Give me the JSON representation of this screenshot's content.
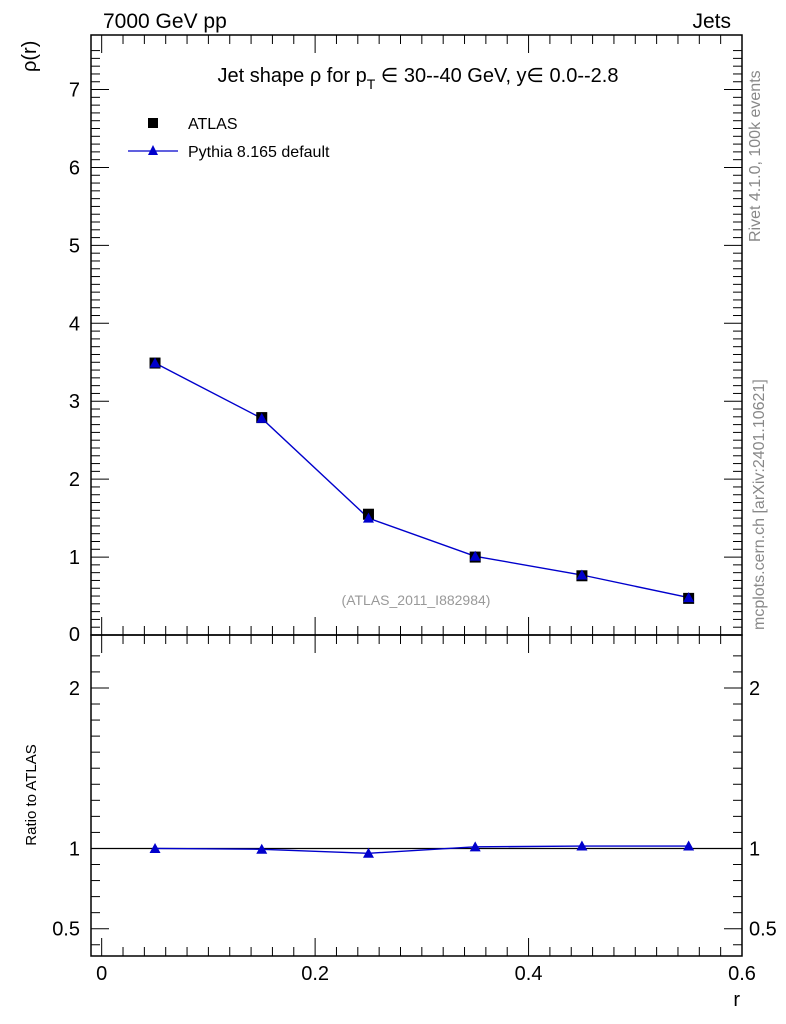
{
  "header": {
    "left": "7000 GeV pp",
    "right": "Jets"
  },
  "side_labels": {
    "rivet": "Rivet 4.1.0,  100k events",
    "mcplots": "mcplots.cern.ch [arXiv:2401.10621]"
  },
  "watermark": "(ATLAS_2011_I882984)",
  "chart_data": [
    {
      "type": "scatter",
      "title": "Jet shape ρ for p_T ∈ 30--40 GeV, y ∈ 0.0--2.8",
      "title_parts": {
        "prefix": "Jet shape ",
        "rho": "ρ",
        "for": " for p",
        "sub": "T",
        "rest": " ∈ 30--40 GeV, y∈ 0.0--2.8"
      },
      "xlabel": "r",
      "ylabel": "ρ(r)",
      "xlim": [
        -0.01,
        0.6
      ],
      "ylim": [
        0,
        7.7
      ],
      "yticks": [
        "1",
        "2",
        "3",
        "4",
        "5",
        "6",
        "7"
      ],
      "ytick_zero": "0",
      "legend_position": "top-left",
      "series": [
        {
          "name": "ATLAS",
          "marker": "square",
          "color": "#000000",
          "x": [
            0.05,
            0.15,
            0.25,
            0.35,
            0.45,
            0.55
          ],
          "values": [
            3.49,
            2.79,
            1.55,
            1.0,
            0.76,
            0.47
          ]
        },
        {
          "name": "Pythia 8.165 default",
          "marker": "triangle",
          "color": "#0000cc",
          "x": [
            0.05,
            0.15,
            0.25,
            0.35,
            0.45,
            0.55
          ],
          "values": [
            3.49,
            2.78,
            1.5,
            1.01,
            0.77,
            0.48
          ]
        }
      ]
    },
    {
      "type": "line",
      "title": "",
      "xlabel": "r",
      "ylabel": "Ratio to ATLAS",
      "xlim": [
        -0.01,
        0.6
      ],
      "ylim": [
        0.33,
        2.33
      ],
      "xticks": [
        "0",
        "0.2",
        "0.4",
        "0.6"
      ],
      "yticks": [
        "0.5",
        "1",
        "2"
      ],
      "series": [
        {
          "name": "Pythia 8.165 default / ATLAS",
          "color": "#0000cc",
          "x": [
            0.05,
            0.15,
            0.25,
            0.35,
            0.45,
            0.55
          ],
          "values": [
            1.0,
            0.995,
            0.97,
            1.01,
            1.015,
            1.015
          ]
        }
      ]
    }
  ]
}
